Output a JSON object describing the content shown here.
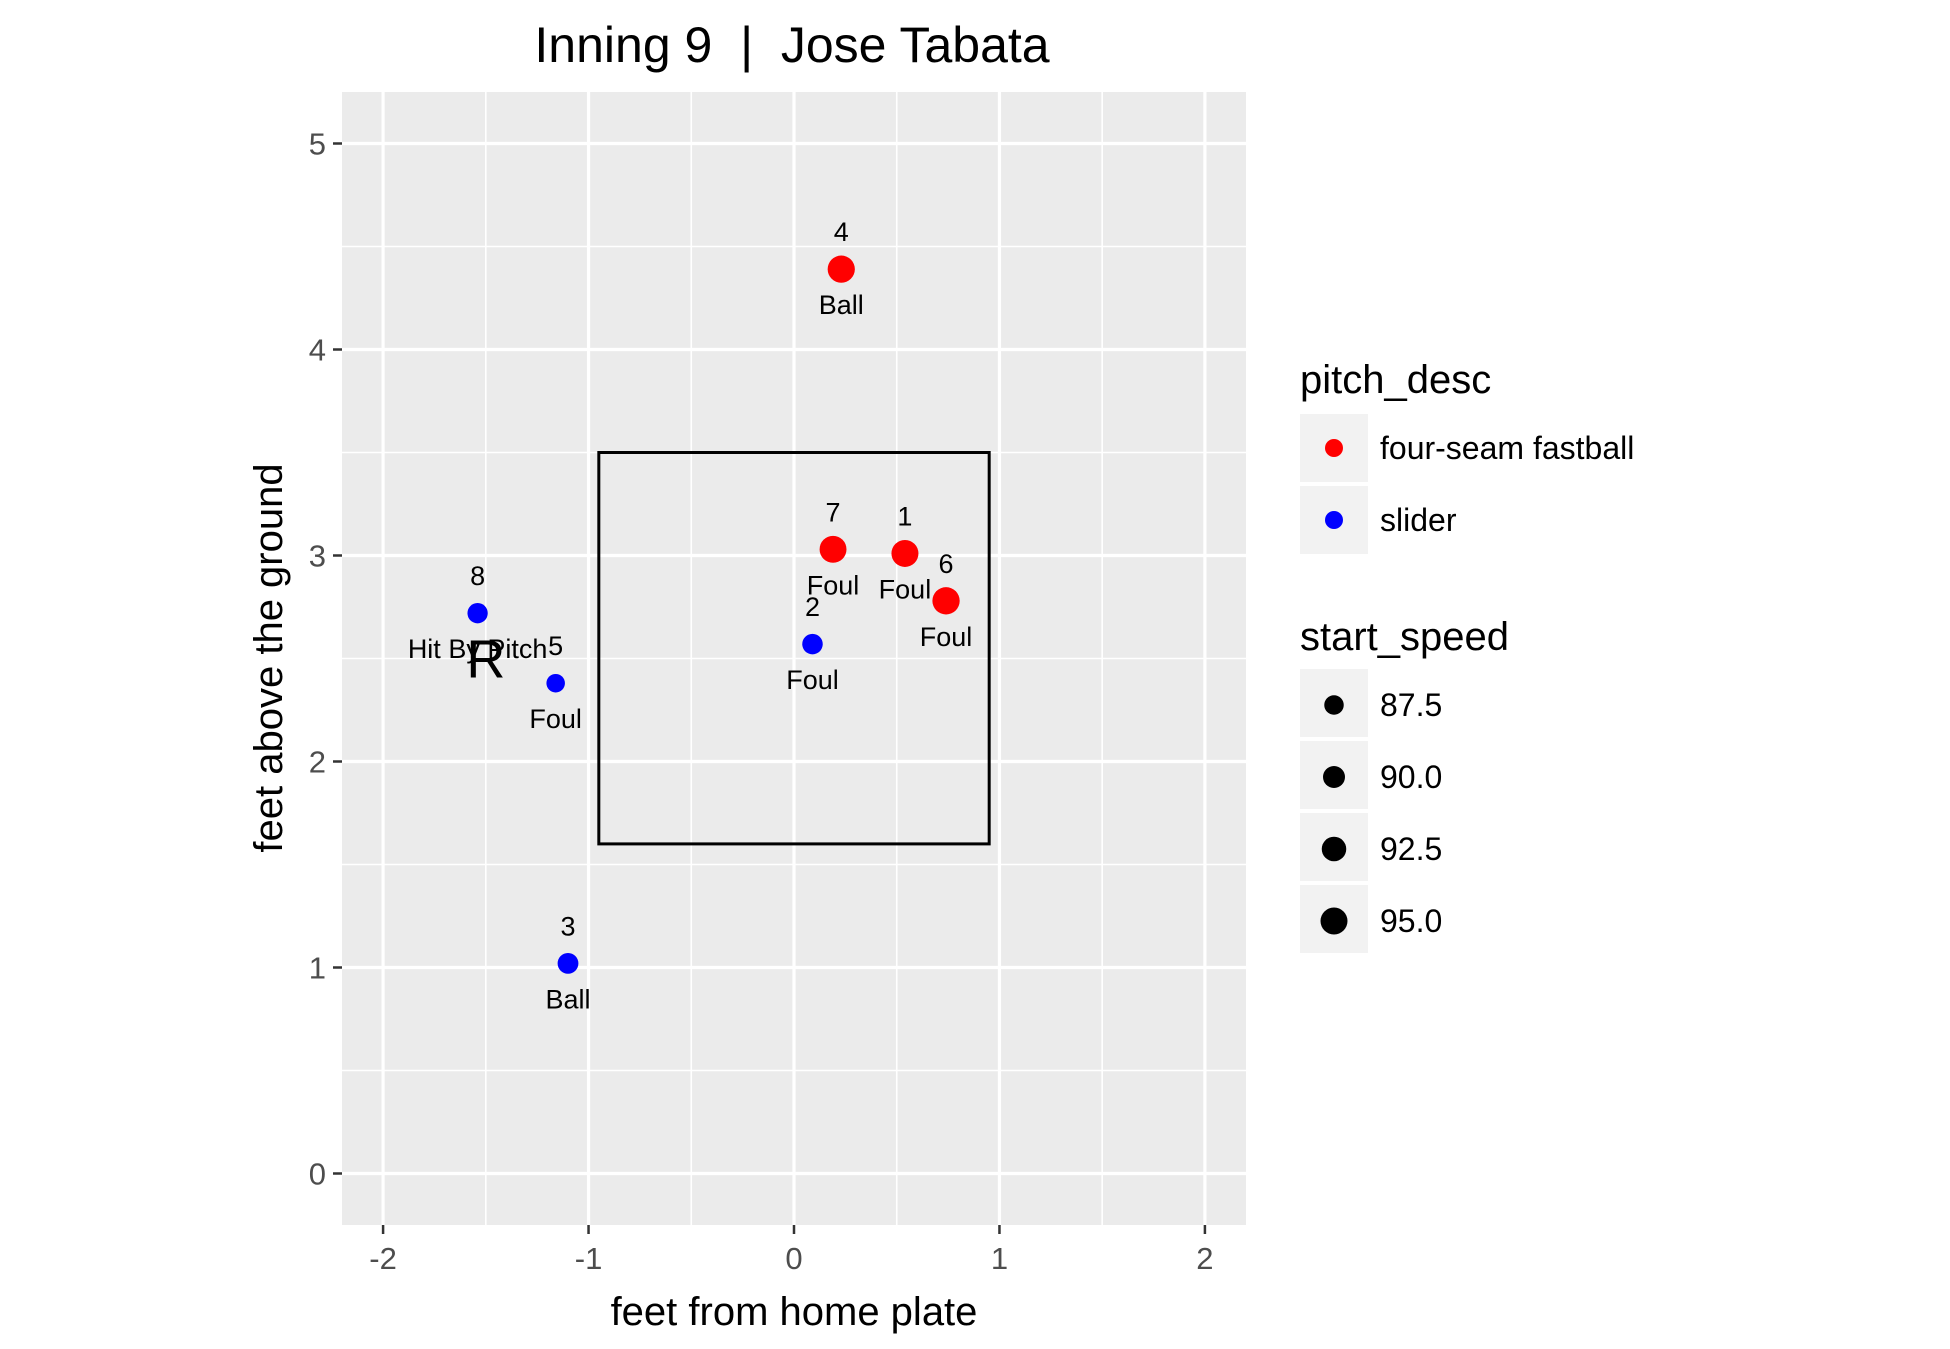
{
  "chart_data": {
    "type": "scatter",
    "title": "Inning 9  |  Jose Tabata",
    "xlabel": "feet from home plate",
    "ylabel": "feet above the ground",
    "xlim": [
      -2.2,
      2.2
    ],
    "ylim": [
      -0.25,
      5.25
    ],
    "x_ticks": [
      -2,
      -1,
      0,
      1,
      2
    ],
    "x_tick_labels": [
      "-2",
      "-1",
      "0",
      "1",
      "2"
    ],
    "y_ticks": [
      0,
      1,
      2,
      3,
      4,
      5
    ],
    "y_tick_labels": [
      "0",
      "1",
      "2",
      "3",
      "4",
      "5"
    ],
    "grid": true,
    "strike_zone": {
      "x": [
        -0.95,
        0.95
      ],
      "y": [
        1.6,
        3.5
      ]
    },
    "batter_side_label": {
      "text": "R",
      "x": -1.5,
      "y": 2.5
    },
    "colors": {
      "four-seam fastball": "#ff0000",
      "slider": "#0000ff"
    },
    "points": [
      {
        "num": "1",
        "result": "Foul",
        "x": 0.54,
        "y": 3.01,
        "pitch_desc": "four-seam fastball",
        "start_speed": 95.0
      },
      {
        "num": "2",
        "result": "Foul",
        "x": 0.09,
        "y": 2.57,
        "pitch_desc": "slider",
        "start_speed": 88.5
      },
      {
        "num": "3",
        "result": "Ball",
        "x": -1.1,
        "y": 1.02,
        "pitch_desc": "slider",
        "start_speed": 88.8
      },
      {
        "num": "4",
        "result": "Ball",
        "x": 0.23,
        "y": 4.39,
        "pitch_desc": "four-seam fastball",
        "start_speed": 95.2
      },
      {
        "num": "5",
        "result": "Foul",
        "x": -1.16,
        "y": 2.38,
        "pitch_desc": "slider",
        "start_speed": 86.5
      },
      {
        "num": "6",
        "result": "Foul",
        "x": 0.74,
        "y": 2.78,
        "pitch_desc": "four-seam fastball",
        "start_speed": 95.3
      },
      {
        "num": "7",
        "result": "Foul",
        "x": 0.19,
        "y": 3.03,
        "pitch_desc": "four-seam fastball",
        "start_speed": 94.9
      },
      {
        "num": "8",
        "result": "Hit By Pitch",
        "x": -1.54,
        "y": 2.72,
        "pitch_desc": "slider",
        "start_speed": 88.3
      }
    ],
    "legend": {
      "placement": "right",
      "color_title": "pitch_desc",
      "color_items": [
        "four-seam fastball",
        "slider"
      ],
      "size_title": "start_speed",
      "size_items": [
        "87.5",
        "90.0",
        "92.5",
        "95.0"
      ]
    }
  }
}
